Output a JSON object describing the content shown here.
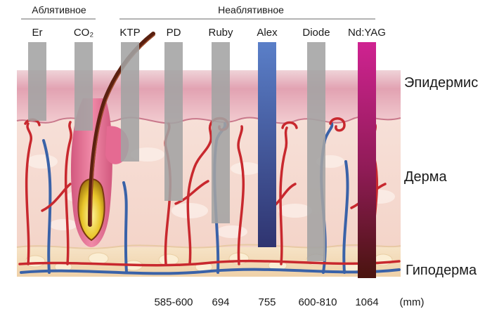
{
  "groups": {
    "ablative": "Аблятивное",
    "nonablative": "Неаблятивное"
  },
  "lasers": [
    {
      "name": "Er",
      "wavelength": "",
      "color": "#a3a3a3",
      "depth": "epidermis"
    },
    {
      "name": "CO₂",
      "wavelength": "",
      "color": "#a3a3a3",
      "depth": "upper-dermis"
    },
    {
      "name": "KTP",
      "wavelength": "",
      "color": "#a3a3a3",
      "depth": "upper-dermis"
    },
    {
      "name": "PD",
      "wavelength": "585-600",
      "color": "#a3a3a3",
      "depth": "mid-dermis"
    },
    {
      "name": "Ruby",
      "wavelength": "694",
      "color": "#a3a3a3",
      "depth": "deep-dermis"
    },
    {
      "name": "Alex",
      "wavelength": "755",
      "color": "#4c5aa8",
      "depth": "lower-dermis"
    },
    {
      "name": "Diode",
      "wavelength": "600-810",
      "color": "#a3a3a3",
      "depth": "hypodermis"
    },
    {
      "name": "Nd:YAG",
      "wavelength": "1064",
      "color": "#c01c7e",
      "depth": "hypodermis"
    }
  ],
  "layers": {
    "epidermis": "Эпидермис",
    "dermis": "Дерма",
    "hypodermis": "Гиподерма"
  },
  "units": "(mm)",
  "colors": {
    "epidermis": "#e3a0b0",
    "dermis": "#f6dcd3",
    "hypodermis": "#f3dcb8",
    "artery": "#c8282e",
    "vein": "#3a62a8",
    "hair": "#5a2010"
  }
}
